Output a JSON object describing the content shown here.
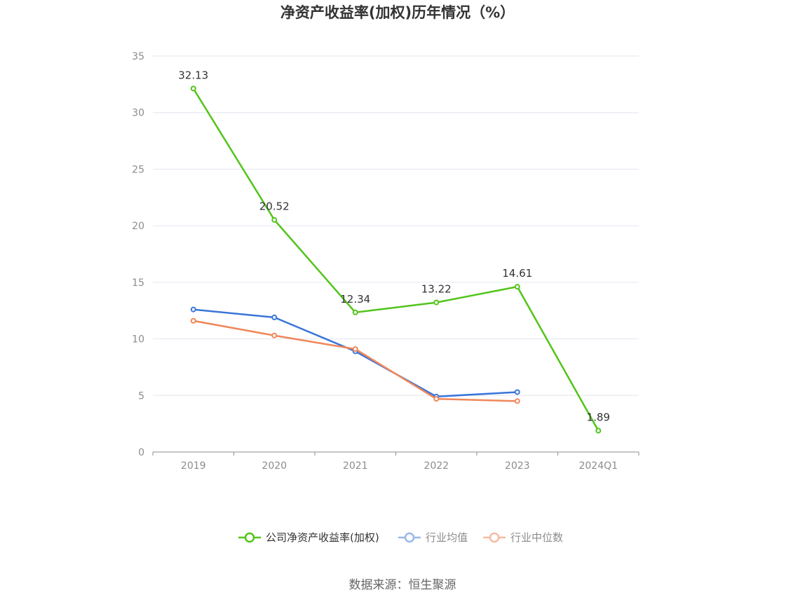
{
  "chart_data": {
    "type": "line",
    "title": "净资产收益率(加权)历年情况（%）",
    "categories": [
      "2019",
      "2020",
      "2021",
      "2022",
      "2023",
      "2024Q1"
    ],
    "ylim": [
      0,
      35
    ],
    "yticks": [
      0,
      5,
      10,
      15,
      20,
      25,
      30,
      35
    ],
    "grid": true,
    "legend_position": "bottom",
    "series": [
      {
        "name": "公司净资产收益率(加权)",
        "color": "#52c41a",
        "values": [
          32.13,
          20.52,
          12.34,
          13.22,
          14.61,
          1.89
        ],
        "data_labels": [
          "32.13",
          "20.52",
          "12.34",
          "13.22",
          "14.61",
          "1.89"
        ]
      },
      {
        "name": "行业均值",
        "color": "#3a75d9",
        "legend_color": "#9ab8ea",
        "values": [
          12.6,
          11.9,
          8.9,
          4.9,
          5.3,
          null
        ]
      },
      {
        "name": "行业中位数",
        "color": "#f0875a",
        "legend_color": "#f5bca3",
        "values": [
          11.6,
          10.3,
          9.1,
          4.7,
          4.5,
          null
        ]
      }
    ]
  },
  "source": "数据来源：恒生聚源"
}
